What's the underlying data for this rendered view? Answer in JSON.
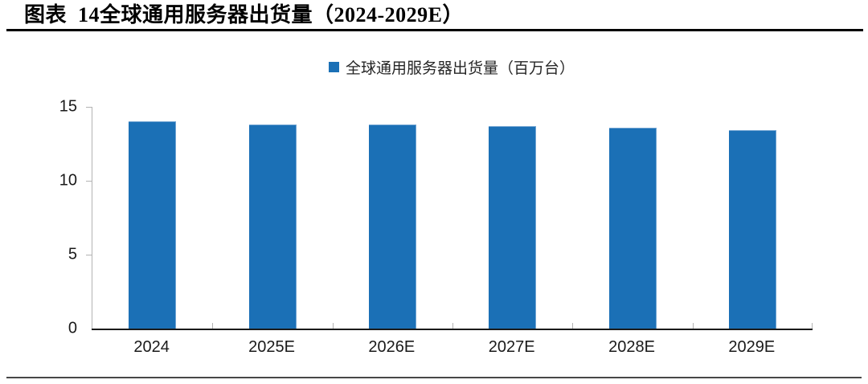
{
  "figure": {
    "title": "图表  14全球通用服务器出货量（2024-2029E）"
  },
  "chart_data": {
    "type": "bar",
    "title": "图表 14全球通用服务器出货量（2024-2029E）",
    "legend": "全球通用服务器出货量（百万台）",
    "legend_position": "top-center",
    "categories": [
      "2024",
      "2025E",
      "2026E",
      "2027E",
      "2028E",
      "2029E"
    ],
    "values": [
      14.0,
      13.8,
      13.8,
      13.7,
      13.6,
      13.4
    ],
    "unit": "百万台",
    "xlabel": "",
    "ylabel": "",
    "ylim": [
      0,
      15
    ],
    "yticks": [
      0,
      5,
      10,
      15
    ],
    "grid": false,
    "bar_color": "#1B70B6",
    "axis_color": "#1a1a1a"
  }
}
